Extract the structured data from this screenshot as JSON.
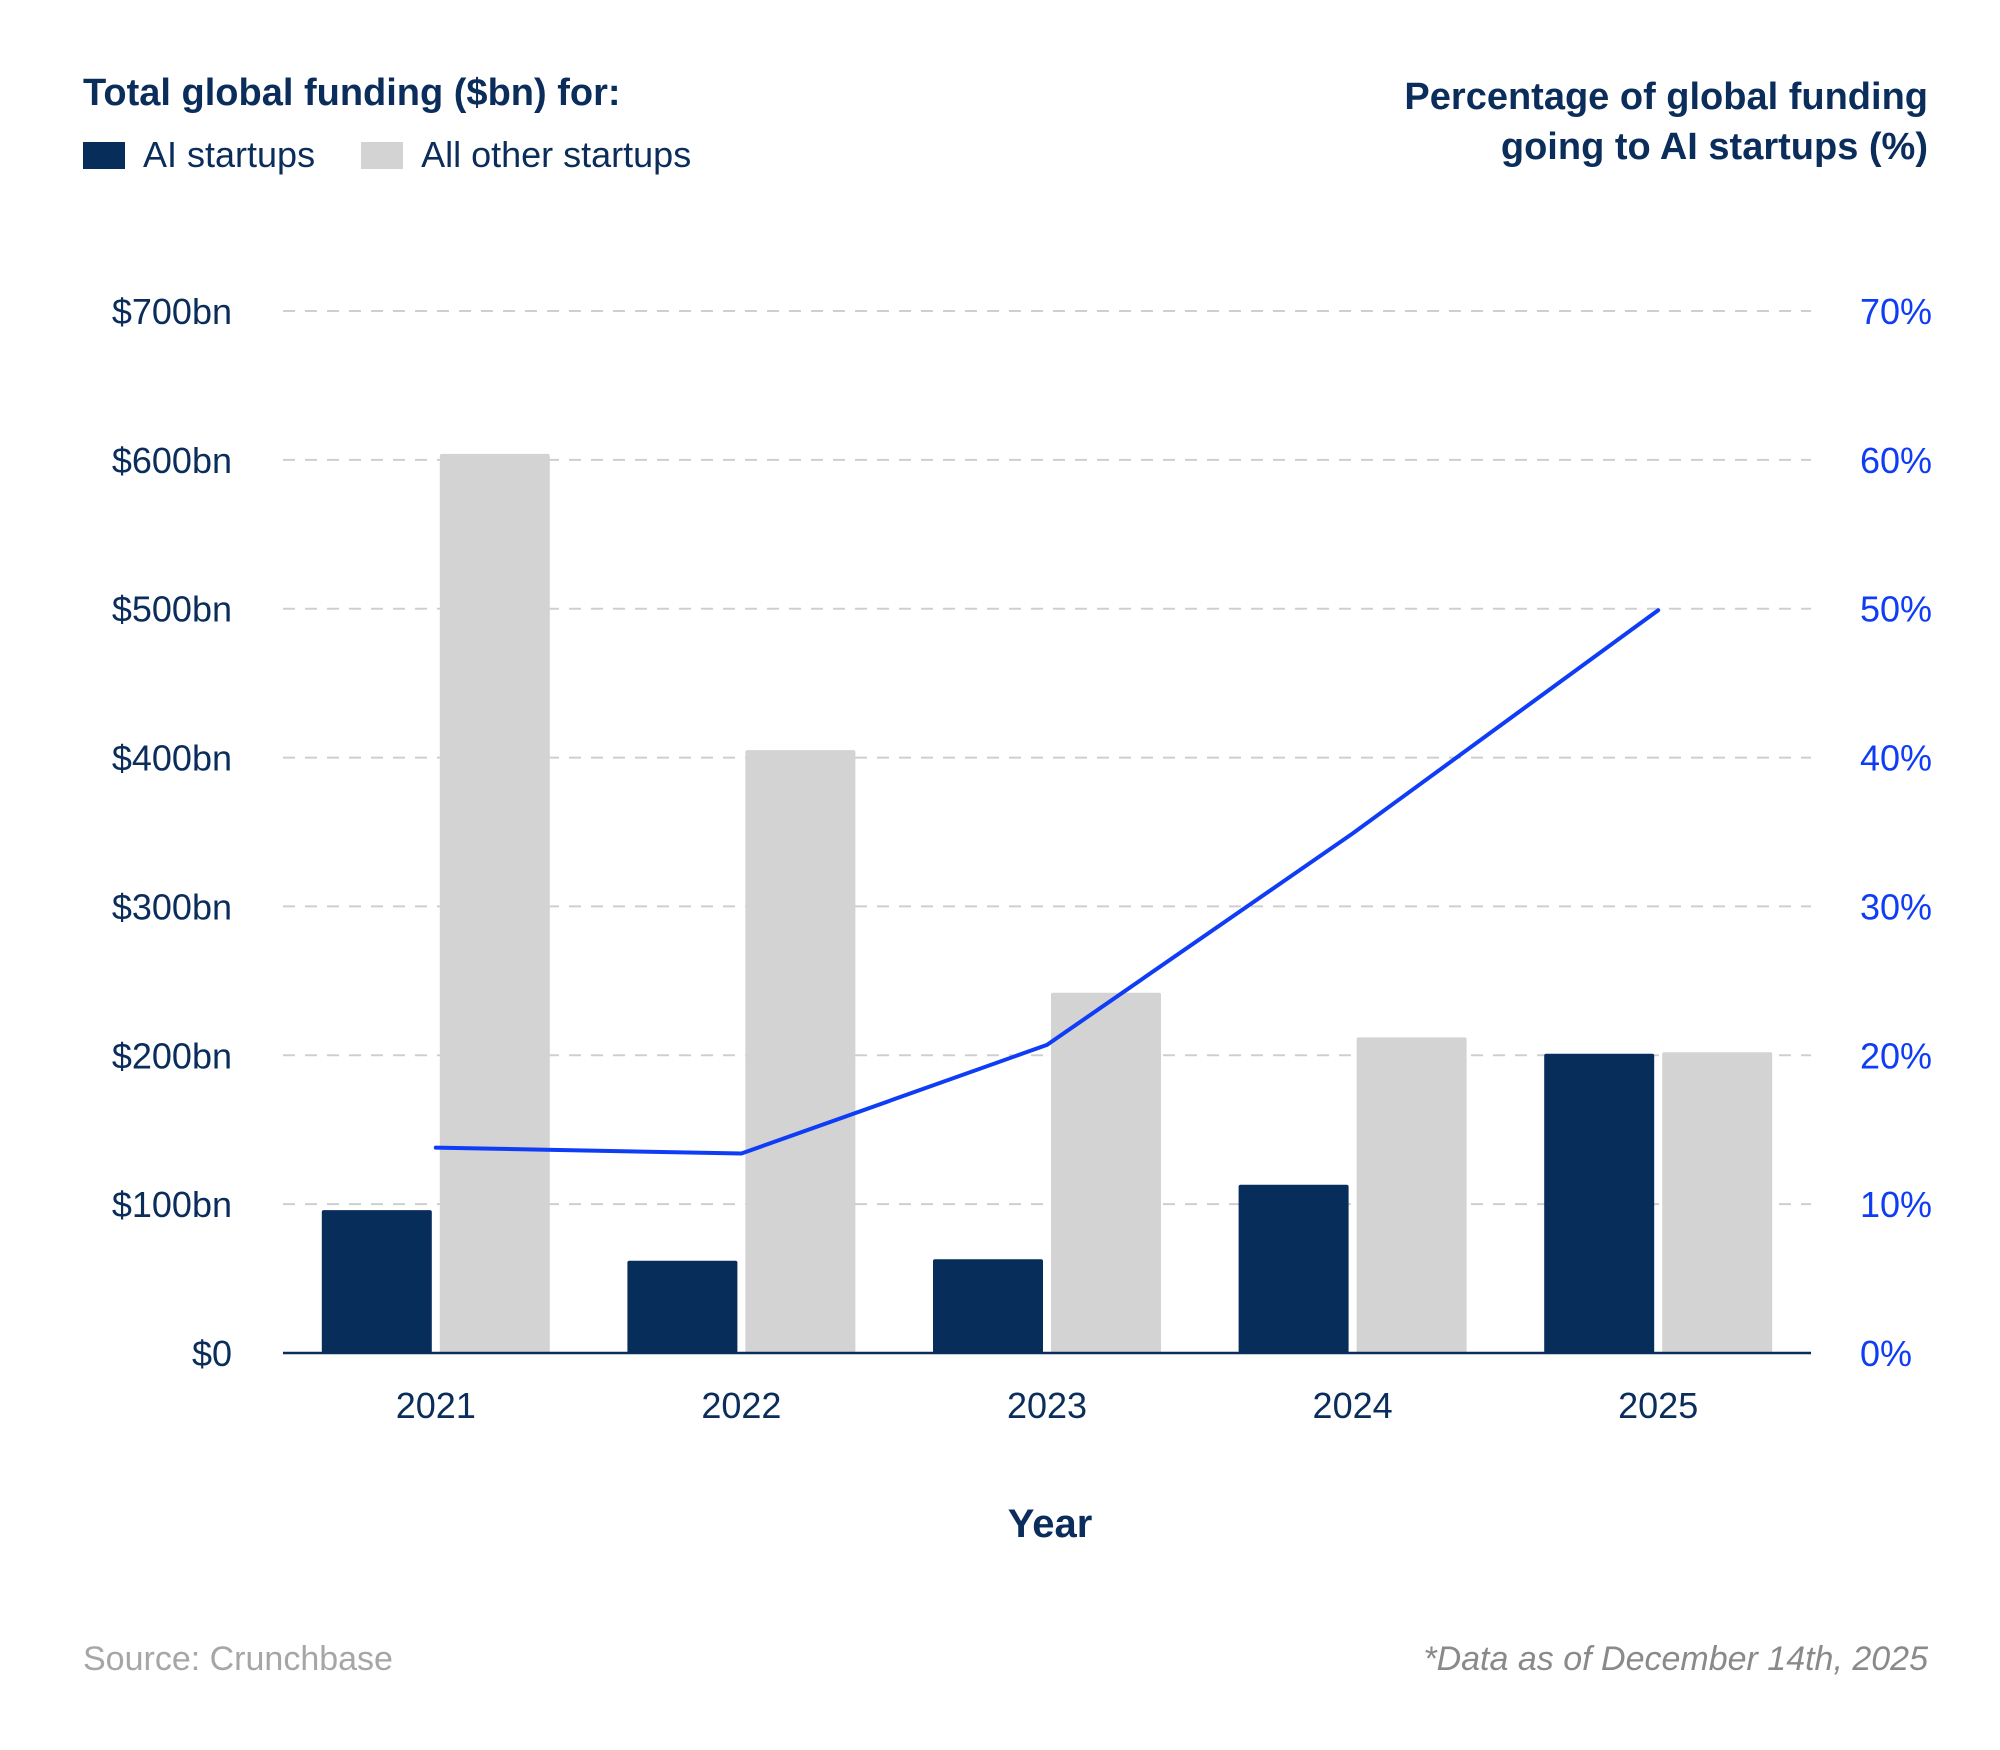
{
  "header": {
    "left_title": "Total global funding ($bn) for:",
    "right_title_line1": "Percentage of global funding",
    "right_title_line2": "going to AI startups (%)"
  },
  "legend": [
    {
      "label": "AI startups",
      "color": "#072d5b"
    },
    {
      "label": "All other startups",
      "color": "#d3d3d3"
    }
  ],
  "footer": {
    "source": "Source: Crunchbase",
    "note": "*Data as of December 14th, 2025"
  },
  "chart_data": {
    "type": "bar",
    "categories": [
      "2021",
      "2022",
      "2023",
      "2024",
      "2025"
    ],
    "xlabel": "Year",
    "ylim": [
      0,
      700
    ],
    "y_ticks": [
      0,
      100,
      200,
      300,
      400,
      500,
      600,
      700
    ],
    "y_tick_labels": [
      "$0",
      "$100bn",
      "$200bn",
      "$300bn",
      "$400bn",
      "$500bn",
      "$600bn",
      "$700bn"
    ],
    "y2lim": [
      0,
      70
    ],
    "y2_ticks": [
      0,
      10,
      20,
      30,
      40,
      50,
      60,
      70
    ],
    "y2_tick_labels": [
      "0%",
      "10%",
      "20%",
      "30%",
      "40%",
      "50%",
      "60%",
      "70%"
    ],
    "grid": "horizontal dashed",
    "legend_position": "top-left",
    "series": [
      {
        "name": "AI startups",
        "type": "bar",
        "axis": "left",
        "color": "#072d5b",
        "values": [
          96,
          62,
          63,
          113,
          201
        ]
      },
      {
        "name": "All other startups",
        "type": "bar",
        "axis": "left",
        "color": "#d3d3d3",
        "values": [
          604,
          405,
          242,
          212,
          202
        ]
      },
      {
        "type": "line",
        "axis": "right",
        "color": "#0f3cf5",
        "values": [
          13.8,
          13.4,
          20.7,
          34.9,
          49.9
        ]
      }
    ]
  }
}
